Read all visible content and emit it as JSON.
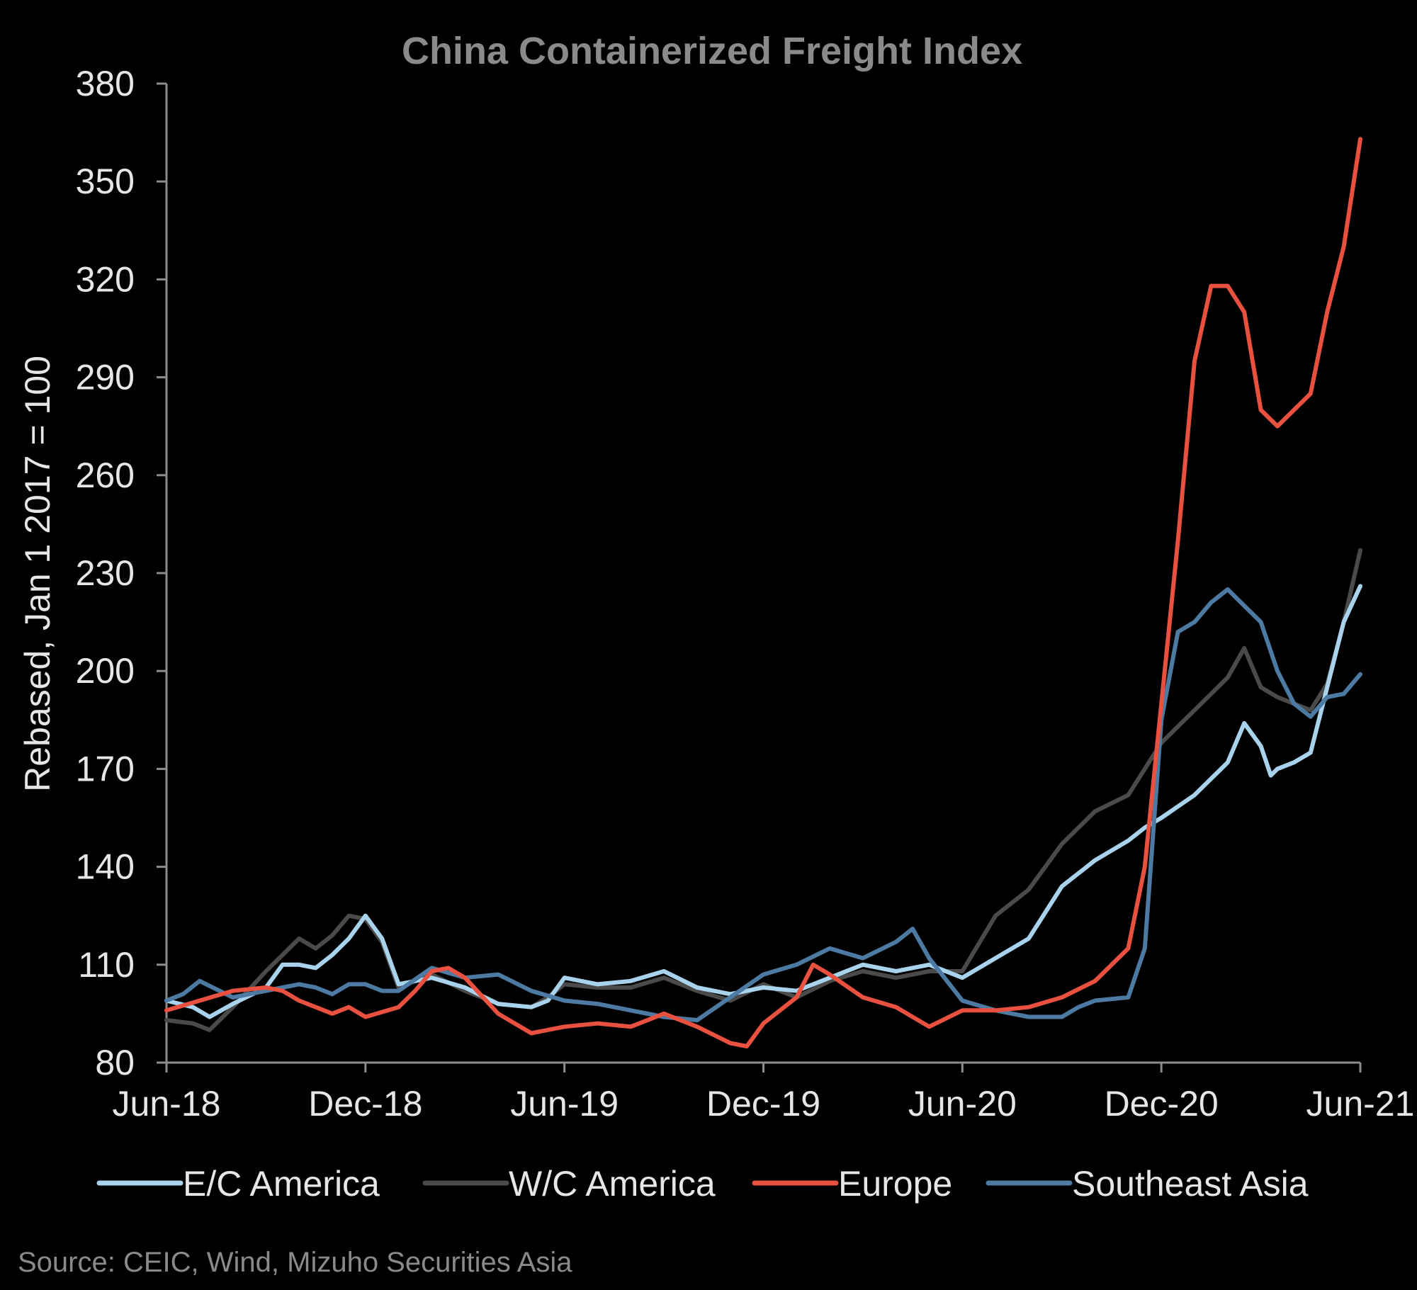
{
  "chart_data": {
    "type": "line",
    "title": "China Containerized Freight Index",
    "ylabel": "Rebased, Jan 1 2017 = 100",
    "xlabel": "",
    "ylim": [
      80,
      380
    ],
    "yticks": [
      80,
      110,
      140,
      170,
      200,
      230,
      260,
      290,
      320,
      350,
      380
    ],
    "xlim": [
      0,
      36
    ],
    "xticks": [
      {
        "x": 0,
        "label": "Jun-18"
      },
      {
        "x": 6,
        "label": "Dec-18"
      },
      {
        "x": 12,
        "label": "Jun-19"
      },
      {
        "x": 18,
        "label": "Dec-19"
      },
      {
        "x": 24,
        "label": "Jun-20"
      },
      {
        "x": 30,
        "label": "Dec-20"
      },
      {
        "x": 36,
        "label": "Jun-21"
      }
    ],
    "grid": false,
    "legend_position": "bottom",
    "series": [
      {
        "name": "E/C America",
        "color": "#a9d3ec",
        "x": [
          0,
          0.8,
          1.3,
          2,
          3,
          3.5,
          4,
          4.5,
          5,
          5.5,
          6,
          6.5,
          7,
          8,
          9,
          10,
          11,
          11.5,
          12,
          13,
          14,
          15,
          16,
          17,
          18,
          19,
          20,
          21,
          22,
          23,
          24,
          25,
          26,
          27,
          28,
          29,
          29.5,
          30,
          31,
          32,
          32.5,
          33,
          33.3,
          33.5,
          34,
          34.5,
          35,
          35.5,
          36
        ],
        "values": [
          99,
          97,
          94,
          98,
          103,
          110,
          110,
          109,
          113,
          118,
          125,
          118,
          104,
          106,
          103,
          98,
          97,
          99,
          106,
          104,
          105,
          108,
          103,
          101,
          103,
          102,
          106,
          110,
          108,
          110,
          106,
          112,
          118,
          134,
          142,
          148,
          152,
          155,
          162,
          172,
          184,
          177,
          168,
          170,
          172,
          175,
          195,
          215,
          226
        ]
      },
      {
        "name": "W/C America",
        "color": "#4a4a4a",
        "x": [
          0,
          0.8,
          1.3,
          2,
          3,
          3.5,
          4,
          4.5,
          5,
          5.5,
          6,
          6.5,
          7,
          8,
          9,
          10,
          11,
          11.5,
          12,
          13,
          14,
          15,
          16,
          17,
          18,
          19,
          20,
          21,
          22,
          23,
          24,
          25,
          26,
          27,
          28,
          29,
          29.5,
          30,
          31,
          32,
          32.5,
          33,
          33.5,
          34,
          34.5,
          35,
          35.5,
          36
        ],
        "values": [
          93,
          92,
          90,
          97,
          108,
          113,
          118,
          115,
          119,
          125,
          124,
          117,
          103,
          107,
          102,
          98,
          97,
          100,
          104,
          103,
          103,
          106,
          102,
          99,
          104,
          100,
          105,
          108,
          106,
          108,
          108,
          125,
          133,
          147,
          157,
          162,
          170,
          178,
          188,
          198,
          207,
          195,
          192,
          190,
          188,
          196,
          215,
          237
        ]
      },
      {
        "name": "Europe",
        "color": "#e8503f",
        "x": [
          0,
          1,
          2,
          3,
          3.5,
          4,
          4.5,
          5,
          5.5,
          6,
          7,
          7.5,
          8,
          8.5,
          9,
          10,
          11,
          12,
          13,
          14,
          15,
          16,
          17,
          17.5,
          18,
          19,
          19.5,
          20,
          21,
          22,
          23,
          24,
          25,
          26,
          27,
          28,
          29,
          29.5,
          30,
          30.5,
          31,
          31.5,
          32,
          32.5,
          33,
          33.5,
          34,
          34.5,
          35,
          35.5,
          36
        ],
        "values": [
          96,
          99,
          102,
          103,
          102,
          99,
          97,
          95,
          97,
          94,
          97,
          102,
          108,
          109,
          106,
          95,
          89,
          91,
          92,
          91,
          95,
          91,
          86,
          85,
          92,
          100,
          110,
          107,
          100,
          97,
          91,
          96,
          96,
          97,
          100,
          105,
          115,
          140,
          190,
          240,
          295,
          318,
          318,
          310,
          280,
          275,
          280,
          285,
          310,
          330,
          363
        ]
      },
      {
        "name": "Southeast Asia",
        "color": "#4d7aa3",
        "x": [
          0,
          0.5,
          1,
          2,
          3,
          3.5,
          4,
          4.5,
          5,
          5.5,
          6,
          6.5,
          7,
          8,
          9,
          10,
          11,
          12,
          13,
          14,
          15,
          16,
          17,
          18,
          19,
          20,
          21,
          22,
          22.5,
          23,
          24,
          25,
          26,
          27,
          27.5,
          28,
          29,
          29.5,
          30,
          30.5,
          31,
          31.5,
          32,
          32.5,
          33,
          33.5,
          34,
          34.5,
          35,
          35.5,
          36
        ],
        "values": [
          99,
          101,
          105,
          100,
          102,
          103,
          104,
          103,
          101,
          104,
          104,
          102,
          102,
          109,
          106,
          107,
          102,
          99,
          98,
          96,
          94,
          93,
          100,
          107,
          110,
          115,
          112,
          117,
          121,
          112,
          99,
          96,
          94,
          94,
          97,
          99,
          100,
          115,
          185,
          212,
          215,
          221,
          225,
          220,
          215,
          200,
          190,
          186,
          192,
          193,
          199
        ]
      }
    ]
  },
  "source": "Source: CEIC, Wind, Mizuho Securities Asia"
}
